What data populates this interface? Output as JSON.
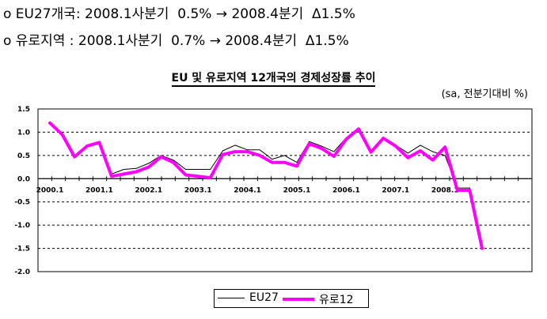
{
  "bullets": [
    "o EU27개국: 2008.1사분기  0.5% → 2008.4분기  Δ1.5%",
    "o 유로지역 : 2008.1사분기  0.7% → 2008.4분기  Δ1.5%"
  ],
  "chart_data": {
    "type": "line",
    "title": "EU 및 유로지역 12개국의 경제성장률 추이",
    "subtitle": "(sa, 전분기대비 %)",
    "ylim": [
      -2.0,
      1.5
    ],
    "yticks": [
      "1.5",
      "1.0",
      "0.5",
      "0.0",
      "-0.5",
      "-1.0",
      "-1.5",
      "-2.0"
    ],
    "xtick_labels": [
      "2000.1",
      "2001.1",
      "2002.1",
      "2003.1",
      "2004.1",
      "2005.1",
      "2006.1",
      "2007.1",
      "2008.1"
    ],
    "grid": "horizontal-dashed",
    "legend_position": "bottom",
    "series": [
      {
        "name": "EU27",
        "color": "#000000",
        "values": [
          1.2,
          0.95,
          0.47,
          0.7,
          0.78,
          0.1,
          0.2,
          0.22,
          0.33,
          0.5,
          0.4,
          0.2,
          0.2,
          0.2,
          0.6,
          0.72,
          0.62,
          0.62,
          0.42,
          0.5,
          0.35,
          0.8,
          0.7,
          0.58,
          0.88,
          1.05,
          0.6,
          0.88,
          0.72,
          0.55,
          0.72,
          0.58,
          0.5,
          -0.2,
          -0.2,
          -1.5
        ]
      },
      {
        "name": "유로12",
        "color": "#ff00ff",
        "values": [
          1.2,
          0.95,
          0.47,
          0.7,
          0.78,
          0.05,
          0.1,
          0.15,
          0.25,
          0.47,
          0.35,
          0.08,
          0.05,
          0.02,
          0.52,
          0.58,
          0.58,
          0.5,
          0.35,
          0.35,
          0.27,
          0.75,
          0.65,
          0.48,
          0.85,
          1.07,
          0.57,
          0.87,
          0.7,
          0.45,
          0.6,
          0.4,
          0.68,
          -0.25,
          -0.25,
          -1.5
        ]
      }
    ]
  }
}
